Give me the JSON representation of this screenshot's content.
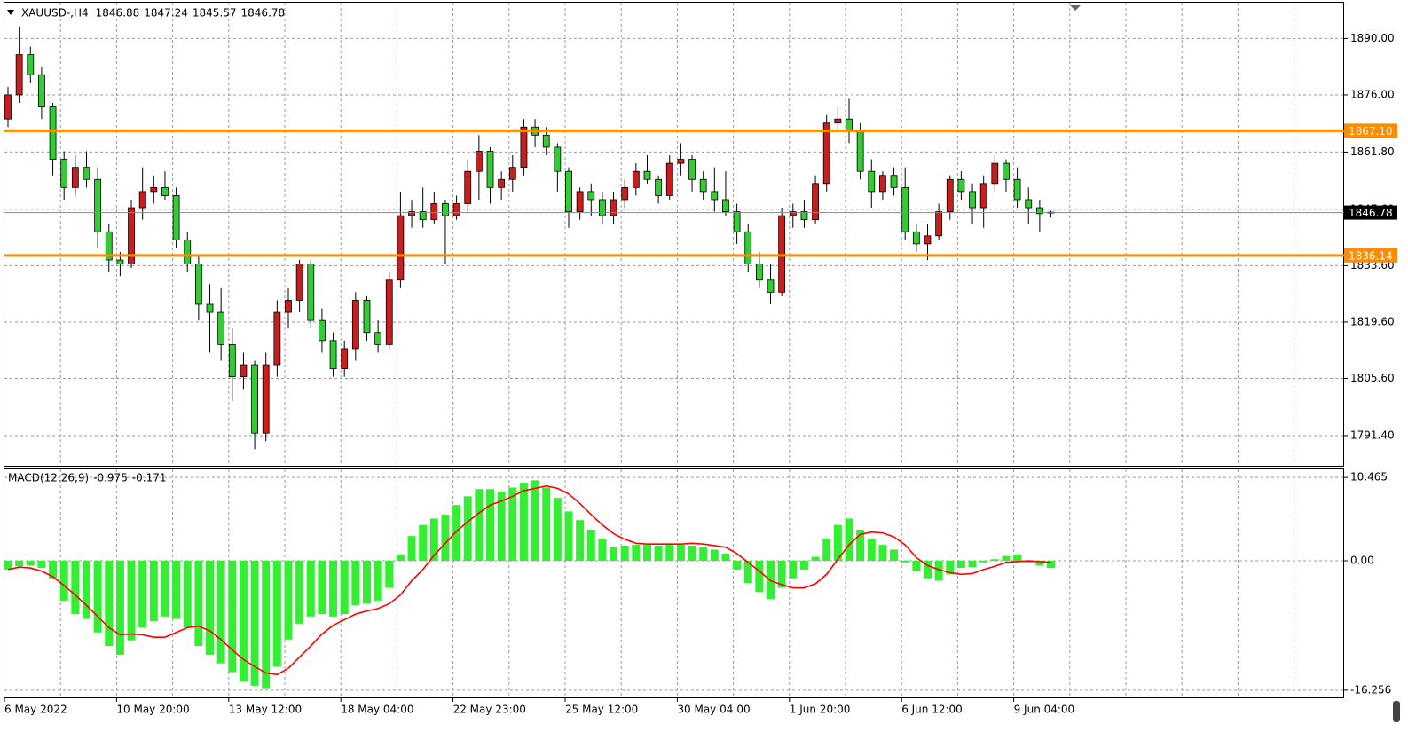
{
  "chart_data": [
    {
      "type": "candlestick",
      "symbol": "XAUUSD-,H4",
      "header_values": [
        1846.88,
        1847.24,
        1845.57,
        1846.78
      ],
      "categories": [
        "6 May 2022",
        null,
        null,
        null,
        null,
        null,
        null,
        null,
        null,
        null,
        "10 May 20:00",
        null,
        null,
        null,
        null,
        null,
        null,
        null,
        null,
        null,
        "13 May 12:00",
        null,
        null,
        null,
        null,
        null,
        null,
        null,
        null,
        null,
        "18 May 04:00",
        null,
        null,
        null,
        null,
        null,
        null,
        null,
        null,
        null,
        "22 May 23:00",
        null,
        null,
        null,
        null,
        null,
        null,
        null,
        null,
        null,
        "25 May 12:00",
        null,
        null,
        null,
        null,
        null,
        null,
        null,
        null,
        null,
        "30 May 04:00",
        null,
        null,
        null,
        null,
        null,
        null,
        null,
        null,
        null,
        "1 Jun 20:00",
        null,
        null,
        null,
        null,
        null,
        null,
        null,
        null,
        null,
        "6 Jun 12:00",
        null,
        null,
        null,
        null,
        null,
        null,
        null,
        null,
        null,
        "9 Jun 04:00",
        null,
        null,
        null
      ],
      "candles": [
        [
          1870,
          1878,
          1868,
          1876
        ],
        [
          1876,
          1893,
          1874,
          1886
        ],
        [
          1886,
          1888,
          1879,
          1881
        ],
        [
          1881,
          1883,
          1870,
          1873
        ],
        [
          1873,
          1874,
          1856,
          1860
        ],
        [
          1860,
          1862,
          1850,
          1853
        ],
        [
          1853,
          1861,
          1851,
          1858
        ],
        [
          1858,
          1862,
          1853,
          1855
        ],
        [
          1855,
          1858,
          1838,
          1842
        ],
        [
          1842,
          1844,
          1832,
          1835
        ],
        [
          1835,
          1837,
          1831,
          1834
        ],
        [
          1834,
          1850,
          1833,
          1848
        ],
        [
          1848,
          1858,
          1845,
          1852
        ],
        [
          1852,
          1856,
          1849,
          1853
        ],
        [
          1853,
          1857,
          1850,
          1851
        ],
        [
          1851,
          1853,
          1838,
          1840
        ],
        [
          1840,
          1842,
          1832,
          1834
        ],
        [
          1834,
          1836,
          1820,
          1824
        ],
        [
          1824,
          1829,
          1812,
          1822
        ],
        [
          1822,
          1828,
          1810,
          1814
        ],
        [
          1814,
          1818,
          1800,
          1806
        ],
        [
          1806,
          1812,
          1803,
          1809
        ],
        [
          1809,
          1810,
          1788,
          1792
        ],
        [
          1792,
          1812,
          1790,
          1809
        ],
        [
          1809,
          1825,
          1806,
          1822
        ],
        [
          1822,
          1828,
          1818,
          1825
        ],
        [
          1825,
          1835,
          1822,
          1834
        ],
        [
          1834,
          1835,
          1818,
          1820
        ],
        [
          1820,
          1823,
          1812,
          1815
        ],
        [
          1815,
          1817,
          1806,
          1808
        ],
        [
          1808,
          1815,
          1806,
          1813
        ],
        [
          1813,
          1827,
          1810,
          1825
        ],
        [
          1825,
          1826,
          1815,
          1817
        ],
        [
          1817,
          1820,
          1812,
          1814
        ],
        [
          1814,
          1832,
          1813,
          1830
        ],
        [
          1830,
          1852,
          1828,
          1846
        ],
        [
          1846,
          1850,
          1843,
          1847
        ],
        [
          1847,
          1853,
          1843,
          1845
        ],
        [
          1845,
          1852,
          1844,
          1849
        ],
        [
          1849,
          1850,
          1834,
          1846
        ],
        [
          1846,
          1851,
          1845,
          1849
        ],
        [
          1849,
          1860,
          1847,
          1857
        ],
        [
          1857,
          1866,
          1850,
          1862
        ],
        [
          1862,
          1863,
          1849,
          1853
        ],
        [
          1853,
          1857,
          1850,
          1855
        ],
        [
          1855,
          1861,
          1852,
          1858
        ],
        [
          1858,
          1870,
          1856,
          1868
        ],
        [
          1868,
          1870,
          1863,
          1866
        ],
        [
          1866,
          1868,
          1861,
          1863
        ],
        [
          1863,
          1864,
          1852,
          1857
        ],
        [
          1857,
          1858,
          1843,
          1847
        ],
        [
          1847,
          1853,
          1845,
          1852
        ],
        [
          1852,
          1854,
          1846,
          1850
        ],
        [
          1850,
          1852,
          1844,
          1846
        ],
        [
          1846,
          1852,
          1844,
          1850
        ],
        [
          1850,
          1855,
          1848,
          1853
        ],
        [
          1853,
          1859,
          1851,
          1857
        ],
        [
          1857,
          1861,
          1854,
          1855
        ],
        [
          1855,
          1856,
          1849,
          1851
        ],
        [
          1851,
          1861,
          1850,
          1859
        ],
        [
          1859,
          1864,
          1856,
          1860
        ],
        [
          1860,
          1861,
          1852,
          1855
        ],
        [
          1855,
          1857,
          1850,
          1852
        ],
        [
          1852,
          1858,
          1847,
          1850
        ],
        [
          1850,
          1857,
          1846,
          1847
        ],
        [
          1847,
          1849,
          1839,
          1842
        ],
        [
          1842,
          1844,
          1832,
          1834
        ],
        [
          1834,
          1837,
          1828,
          1830
        ],
        [
          1830,
          1834,
          1824,
          1827
        ],
        [
          1827,
          1848,
          1826,
          1846
        ],
        [
          1846,
          1849,
          1843,
          1847
        ],
        [
          1847,
          1850,
          1843,
          1845
        ],
        [
          1845,
          1856,
          1844,
          1854
        ],
        [
          1854,
          1871,
          1852,
          1869
        ],
        [
          1869,
          1873,
          1867,
          1870
        ],
        [
          1870,
          1875,
          1864,
          1867
        ],
        [
          1867,
          1869,
          1855,
          1857
        ],
        [
          1857,
          1860,
          1848,
          1852
        ],
        [
          1852,
          1857,
          1850,
          1856
        ],
        [
          1856,
          1858,
          1851,
          1853
        ],
        [
          1853,
          1858,
          1840,
          1842
        ],
        [
          1842,
          1844,
          1837,
          1839
        ],
        [
          1839,
          1844,
          1835,
          1841
        ],
        [
          1841,
          1849,
          1840,
          1847
        ],
        [
          1847,
          1856,
          1845,
          1855
        ],
        [
          1855,
          1857,
          1850,
          1852
        ],
        [
          1852,
          1854,
          1844,
          1848
        ],
        [
          1848,
          1856,
          1843,
          1854
        ],
        [
          1854,
          1861,
          1852,
          1859
        ],
        [
          1859,
          1860,
          1852,
          1855
        ],
        [
          1855,
          1858,
          1848,
          1850
        ],
        [
          1850,
          1853,
          1844,
          1848
        ],
        [
          1848,
          1850,
          1842,
          1846.5
        ],
        [
          1846.88,
          1847.24,
          1845.57,
          1846.78
        ]
      ],
      "up_color": "#c81e1e",
      "down_color": "#32cd32",
      "ylim": [
        1783.9,
        1898.9
      ],
      "yticks": [
        {
          "value": 1890,
          "label": "1890.00"
        },
        {
          "value": 1876,
          "label": "1876.00"
        },
        {
          "value": 1861.8,
          "label": "1861.80"
        },
        {
          "value": 1847.6,
          "label": "1847.60"
        },
        {
          "value": 1833.6,
          "label": "1833.60"
        },
        {
          "value": 1819.6,
          "label": "1819.60"
        },
        {
          "value": 1805.6,
          "label": "1805.60"
        },
        {
          "value": 1791.4,
          "label": "1791.40"
        }
      ],
      "levels": [
        {
          "value": 1867.1,
          "label": "1867.10"
        },
        {
          "value": 1836.14,
          "label": "1836.14"
        }
      ],
      "level_color": "#ff8c00",
      "current_price": 1846.78,
      "grid": true
    },
    {
      "type": "macd",
      "name": "MACD(12,26,9)",
      "header_values": [
        -0.975,
        -0.171
      ],
      "series": [
        {
          "kind": "histogram",
          "color": "#33ee33",
          "values": [
            -1.1,
            -0.7,
            -0.6,
            -0.9,
            -2.2,
            -5,
            -6.7,
            -7.3,
            -9,
            -10.7,
            -11.8,
            -10,
            -8.4,
            -7.6,
            -7,
            -7.3,
            -8.4,
            -10.7,
            -11.8,
            -12.9,
            -14,
            -15.2,
            -15.7,
            -16,
            -13.3,
            -9.9,
            -7.9,
            -7,
            -6.7,
            -7,
            -6.7,
            -5.6,
            -5.4,
            -5,
            -3.4,
            0.8,
            3.1,
            4.5,
            5.3,
            5.8,
            7,
            8.1,
            9,
            9,
            8.7,
            9.2,
            9.8,
            10.1,
            9.2,
            7.9,
            6.2,
            5.1,
            3.9,
            2.8,
            1.7,
            1.9,
            2,
            2,
            1.9,
            2,
            2,
            1.9,
            1.7,
            1.4,
            0.9,
            -1.1,
            -2.8,
            -3.9,
            -4.8,
            -3.4,
            -2.2,
            -1.1,
            0.5,
            2.8,
            4.5,
            5.3,
            3.9,
            2.8,
            2,
            1.4,
            -0.2,
            -1.3,
            -2.2,
            -2.5,
            -1.7,
            -0.9,
            -0.8,
            -0.2,
            0.2,
            0.6,
            0.8,
            -0.2,
            -0.6,
            -0.9
          ]
        },
        {
          "kind": "line",
          "color": "#ff0000",
          "values": [
            -1.1,
            -0.8,
            -0.9,
            -1.3,
            -2,
            -3.1,
            -4.3,
            -5.6,
            -7,
            -8.4,
            -9.3,
            -9.2,
            -9.3,
            -9.6,
            -9.6,
            -9,
            -8.4,
            -8.2,
            -8.8,
            -9.9,
            -11.2,
            -12.4,
            -13.3,
            -14.1,
            -14.3,
            -13.5,
            -12.1,
            -10.7,
            -9.2,
            -8.1,
            -7.4,
            -6.7,
            -6.3,
            -6,
            -5.4,
            -4.3,
            -2.5,
            -1.1,
            0.7,
            2.2,
            3.7,
            4.9,
            6,
            7,
            7.5,
            8.1,
            8.8,
            9.1,
            9.4,
            9.1,
            8.4,
            7.2,
            5.8,
            4.5,
            3.4,
            2.7,
            2.2,
            2.1,
            2.1,
            2.1,
            2.1,
            2.2,
            2.1,
            1.9,
            1.7,
            0.9,
            -0.2,
            -1.3,
            -2.5,
            -3,
            -3.4,
            -3.4,
            -2.9,
            -1.7,
            0.2,
            2,
            3.3,
            3.6,
            3.5,
            3,
            2,
            0.4,
            -0.6,
            -1.1,
            -1.5,
            -1.7,
            -1.6,
            -1.1,
            -0.7,
            -0.2,
            -0.1,
            0,
            -0.1,
            -0.2
          ]
        }
      ],
      "ylim": [
        -17.16,
        11.48
      ],
      "yticks": [
        {
          "value": 10.465,
          "label": "10.465"
        },
        {
          "value": 0,
          "label": "0.00"
        },
        {
          "value": -16.256,
          "label": "-16.256"
        }
      ],
      "grid": true
    }
  ]
}
